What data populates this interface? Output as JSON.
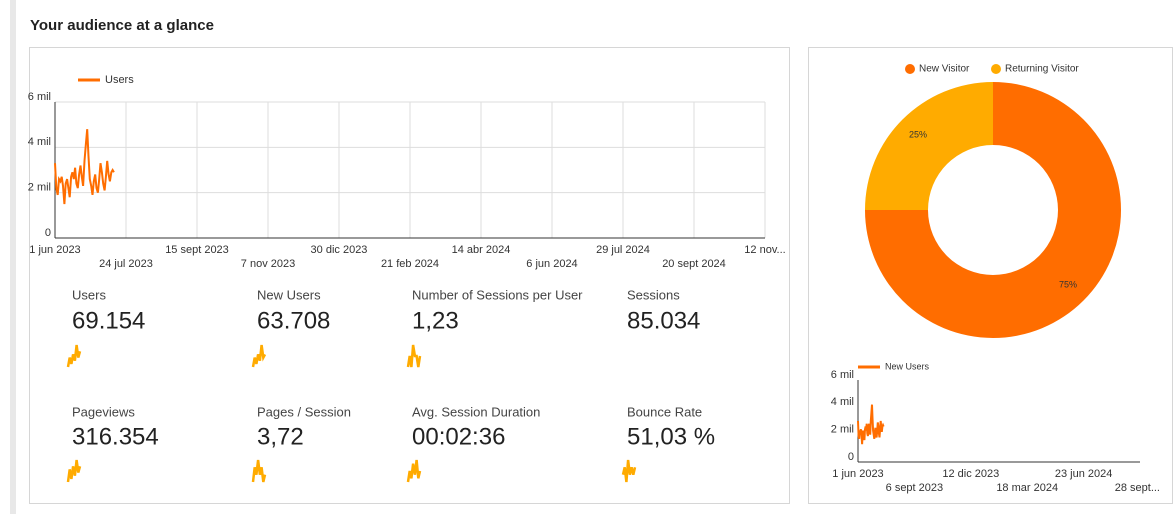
{
  "title": "Your audience at a glance",
  "dates": [
    "2023-06-01",
    "2023-06-02",
    "2023-06-03",
    "2023-06-04",
    "2023-06-05",
    "2023-06-06",
    "2023-06-07",
    "2023-06-08",
    "2023-06-09",
    "2023-06-10",
    "2023-06-11",
    "2023-06-12",
    "2023-06-13",
    "2023-06-14",
    "2023-06-15",
    "2023-06-16",
    "2023-06-17",
    "2023-06-18",
    "2023-06-19",
    "2023-06-20",
    "2023-06-21",
    "2023-06-22",
    "2023-06-23",
    "2023-06-24",
    "2023-06-25",
    "2023-06-26",
    "2023-06-27",
    "2023-06-28",
    "2023-06-29",
    "2023-06-30",
    "2023-07-01",
    "2023-07-02",
    "2023-07-03",
    "2023-07-04",
    "2023-07-05",
    "2023-07-06",
    "2023-07-07",
    "2023-07-08",
    "2023-07-09",
    "2023-07-10",
    "2023-07-11",
    "2023-07-12",
    "2023-07-13",
    "2023-07-14",
    "2023-07-15"
  ],
  "users_chart": {
    "type": "line",
    "series": [
      {
        "name": "Users",
        "color": "#ff6d00",
        "values": [
          3300,
          2200,
          1900,
          2600,
          2500,
          2700,
          2300,
          1500,
          2400,
          2600,
          2200,
          1800,
          2700,
          2900,
          2600,
          3100,
          2400,
          2200,
          2800,
          3200,
          2700,
          2300,
          3400,
          4100,
          4800,
          3600,
          2600,
          2300,
          1900,
          2500,
          2800,
          2200,
          2000,
          2600,
          3300,
          2900,
          2400,
          2100,
          2700,
          3400,
          2800,
          2500,
          2900,
          3000,
          2900
        ]
      }
    ],
    "xlim": [
      "2023-06-01",
      "2024-11-12"
    ],
    "xticks": [
      {
        "value": "2023-06-01",
        "label": "1 jun 2023"
      },
      {
        "value": "2023-07-24",
        "label": "24 jul 2023"
      },
      {
        "value": "2023-09-15",
        "label": "15 sept 2023"
      },
      {
        "value": "2023-11-07",
        "label": "7 nov 2023"
      },
      {
        "value": "2023-12-30",
        "label": "30 dic 2023"
      },
      {
        "value": "2024-02-21",
        "label": "21 feb 2024"
      },
      {
        "value": "2024-04-14",
        "label": "14 abr 2024"
      },
      {
        "value": "2024-06-06",
        "label": "6 jun 2024"
      },
      {
        "value": "2024-07-29",
        "label": "29 jul 2024"
      },
      {
        "value": "2024-09-20",
        "label": "20 sept 2024"
      },
      {
        "value": "2024-11-12",
        "label": "12 nov..."
      }
    ],
    "ylim": [
      0,
      6000
    ],
    "yticks": [
      0,
      {
        "value": 2000,
        "label": "2 mil"
      },
      {
        "value": 4000,
        "label": "4 mil"
      },
      {
        "value": 6000,
        "label": "6 mil"
      }
    ],
    "grid": true
  },
  "scorecards": [
    {
      "label": "Users",
      "value": "69.154",
      "trend": [
        2,
        5,
        3,
        6,
        4,
        9,
        5,
        7
      ]
    },
    {
      "label": "New Users",
      "value": "63.708",
      "trend": [
        2,
        5,
        3,
        6,
        4,
        9,
        5,
        6
      ]
    },
    {
      "label": "Number of Sessions per User",
      "value": "1,23",
      "trend": [
        4,
        5,
        4,
        6,
        5,
        5,
        4,
        5
      ]
    },
    {
      "label": "Sessions",
      "value": "85.034",
      "trend": []
    },
    {
      "label": "Pageviews",
      "value": "316.354",
      "trend": [
        3,
        7,
        4,
        8,
        5,
        10,
        6,
        8
      ]
    },
    {
      "label": "Pages / Session",
      "value": "3,72",
      "trend": [
        5,
        7,
        6,
        8,
        6,
        7,
        5,
        6
      ]
    },
    {
      "label": "Avg. Session Duration",
      "value": "00:02:36",
      "trend": [
        3,
        6,
        4,
        8,
        5,
        9,
        4,
        6
      ]
    },
    {
      "label": "Bounce Rate",
      "value": "51,03 %",
      "trend": [
        6,
        7,
        5,
        8,
        6,
        7,
        6,
        7
      ]
    }
  ],
  "visitor_chart": {
    "type": "pie",
    "categories": [
      "New Visitor",
      "Returning Visitor"
    ],
    "colors": [
      "#ff6d00",
      "#ffab00"
    ],
    "values": [
      75,
      25
    ],
    "value_labels": [
      "75%",
      "25%"
    ]
  },
  "new_users_chart": {
    "type": "line",
    "series": [
      {
        "name": "New Users",
        "color": "#ff6d00",
        "values": [
          3000,
          1900,
          1700,
          2300,
          2200,
          2400,
          2000,
          1300,
          2100,
          2300,
          1900,
          1600,
          2400,
          2600,
          2300,
          2800,
          2100,
          1900,
          2500,
          2800,
          2400,
          2000,
          3000,
          3600,
          4200,
          3200,
          2300,
          2000,
          1700,
          2200,
          2500,
          1900,
          1800,
          2300,
          2900,
          2600,
          2100,
          1800,
          2400,
          3000,
          2500,
          2200,
          2600,
          2700,
          2600
        ]
      }
    ],
    "xlim": [
      "2023-06-01",
      "2024-09-28"
    ],
    "xticks": [
      {
        "value": "2023-06-01",
        "label": "1 jun 2023"
      },
      {
        "value": "2023-09-06",
        "label": "6 sept 2023"
      },
      {
        "value": "2023-12-12",
        "label": "12 dic 2023"
      },
      {
        "value": "2024-03-18",
        "label": "18 mar 2024"
      },
      {
        "value": "2024-06-23",
        "label": "23 jun 2024"
      },
      {
        "value": "2024-09-28",
        "label": "28 sept..."
      }
    ],
    "ylim": [
      0,
      6000
    ],
    "yticks": [
      0,
      {
        "value": 2000,
        "label": "2 mil"
      },
      {
        "value": 4000,
        "label": "4 mil"
      },
      {
        "value": 6000,
        "label": "6 mil"
      }
    ],
    "grid": false
  }
}
